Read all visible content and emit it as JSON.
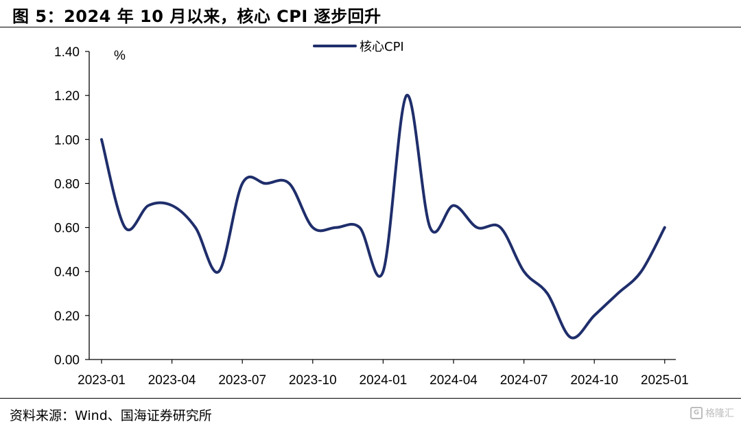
{
  "header": {
    "title": "图 5：2024 年 10 月以来，核心 CPI 逐步回升"
  },
  "footer": {
    "source": "资料来源：Wind、国海证券研究所",
    "watermark": "格隆汇"
  },
  "colors": {
    "line": "#1f2e6b"
  },
  "chart_data": {
    "type": "line",
    "unit": "%",
    "ylim": [
      0,
      1.4
    ],
    "yticks": [
      "0.00",
      "0.20",
      "0.40",
      "0.60",
      "0.80",
      "1.00",
      "1.20",
      "1.40"
    ],
    "xtick_labels": [
      "2023-01",
      "2023-04",
      "2023-07",
      "2023-10",
      "2024-01",
      "2024-04",
      "2024-07",
      "2024-10",
      "2025-01"
    ],
    "legend": "top-center",
    "grid": false,
    "x": [
      "2023-01",
      "2023-02",
      "2023-03",
      "2023-04",
      "2023-05",
      "2023-06",
      "2023-07",
      "2023-08",
      "2023-09",
      "2023-10",
      "2023-11",
      "2023-12",
      "2024-01",
      "2024-02",
      "2024-03",
      "2024-04",
      "2024-05",
      "2024-06",
      "2024-07",
      "2024-08",
      "2024-09",
      "2024-10",
      "2024-11",
      "2024-12",
      "2025-01"
    ],
    "series": [
      {
        "name": "核心CPI",
        "values": [
          1.0,
          0.6,
          0.7,
          0.7,
          0.6,
          0.4,
          0.8,
          0.8,
          0.8,
          0.6,
          0.6,
          0.6,
          0.4,
          1.2,
          0.6,
          0.7,
          0.6,
          0.6,
          0.4,
          0.3,
          0.1,
          0.2,
          0.3,
          0.4,
          0.6
        ]
      }
    ]
  }
}
